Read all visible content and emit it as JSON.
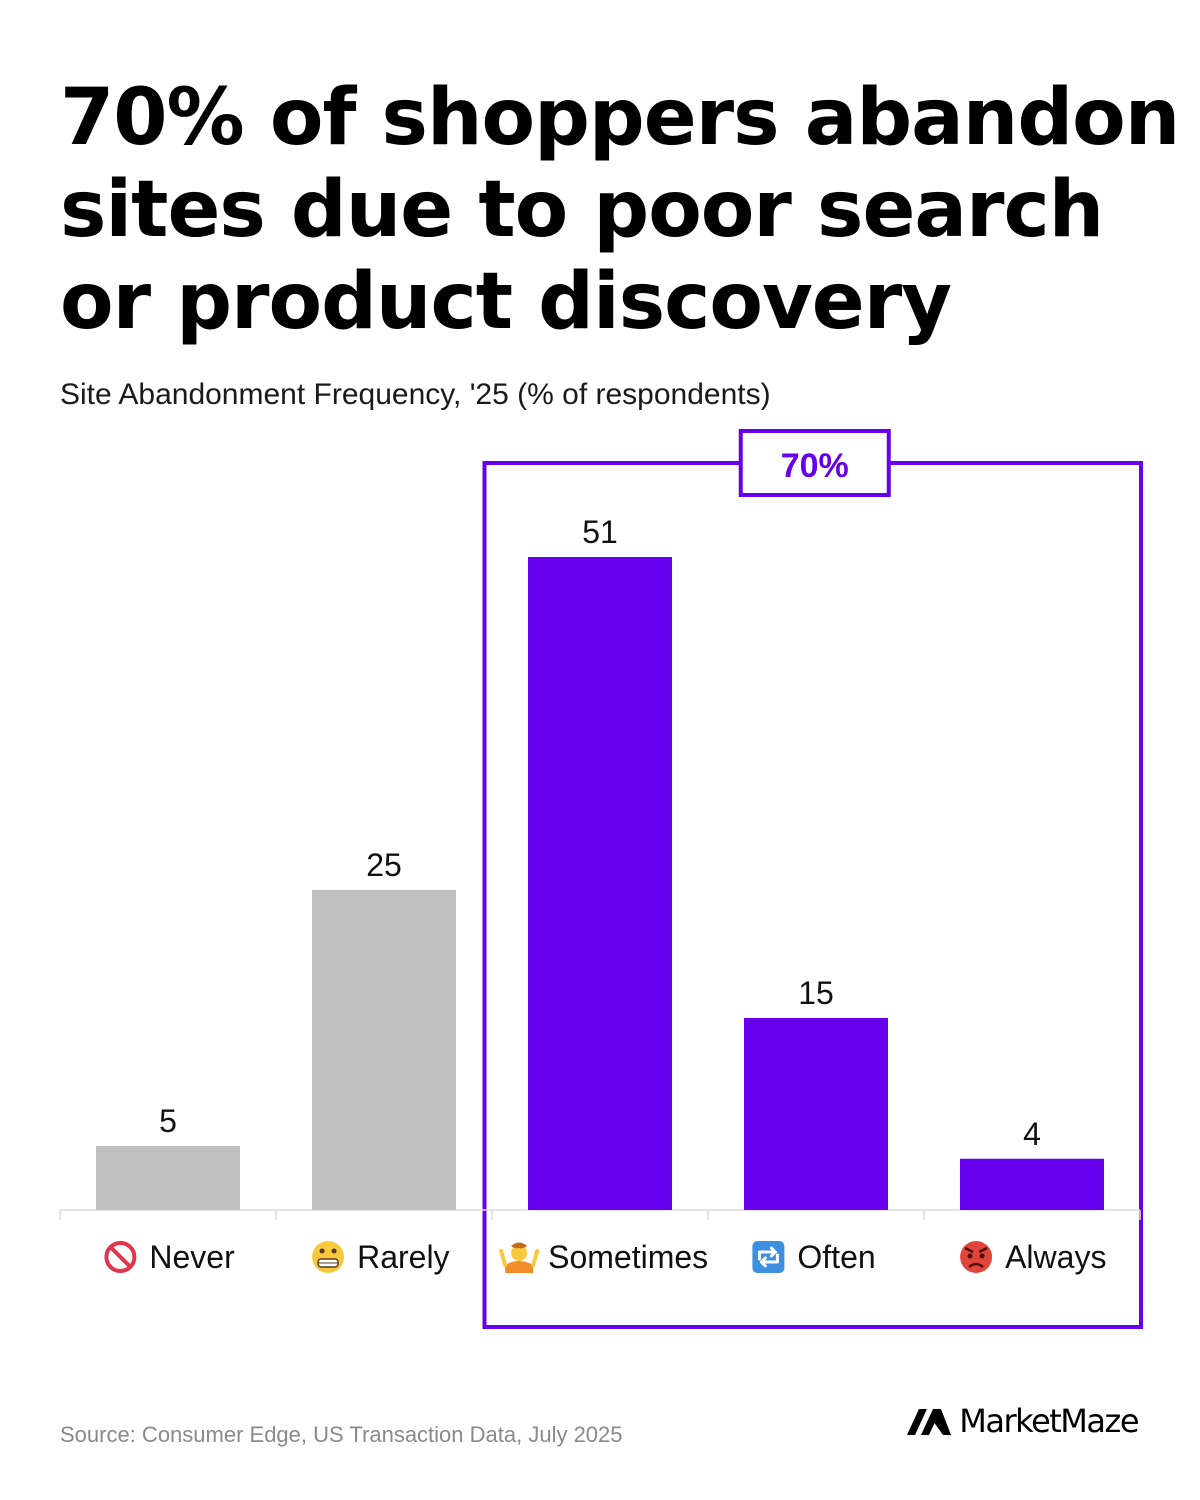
{
  "title_lines": [
    "70% of shoppers abandon",
    "sites due to poor search",
    "or product discovery"
  ],
  "subtitle": "Site Abandonment Frequency, '25 (% of respondents)",
  "source": "Source: Consumer Edge, US Transaction Data, July 2025",
  "brand": "MarketMaze",
  "colors": {
    "accent": "#6600ee",
    "muted": "#c0c0c0",
    "axis": "#dddddd"
  },
  "chart_data": {
    "type": "bar",
    "title": "70% of shoppers abandon sites due to poor search or product discovery",
    "subtitle": "Site Abandonment Frequency, '25 (% of respondents)",
    "categories": [
      "Never",
      "Rarely",
      "Sometimes",
      "Often",
      "Always"
    ],
    "category_icons": [
      "prohibited-icon",
      "grimacing-face-icon",
      "shrugging-person-icon",
      "repeat-arrows-icon",
      "angry-face-icon"
    ],
    "values": [
      5,
      25,
      51,
      15,
      4
    ],
    "highlighted": [
      false,
      false,
      true,
      true,
      true
    ],
    "highlight_callout": "70%",
    "ylim": [
      0,
      51
    ],
    "grid": false
  }
}
